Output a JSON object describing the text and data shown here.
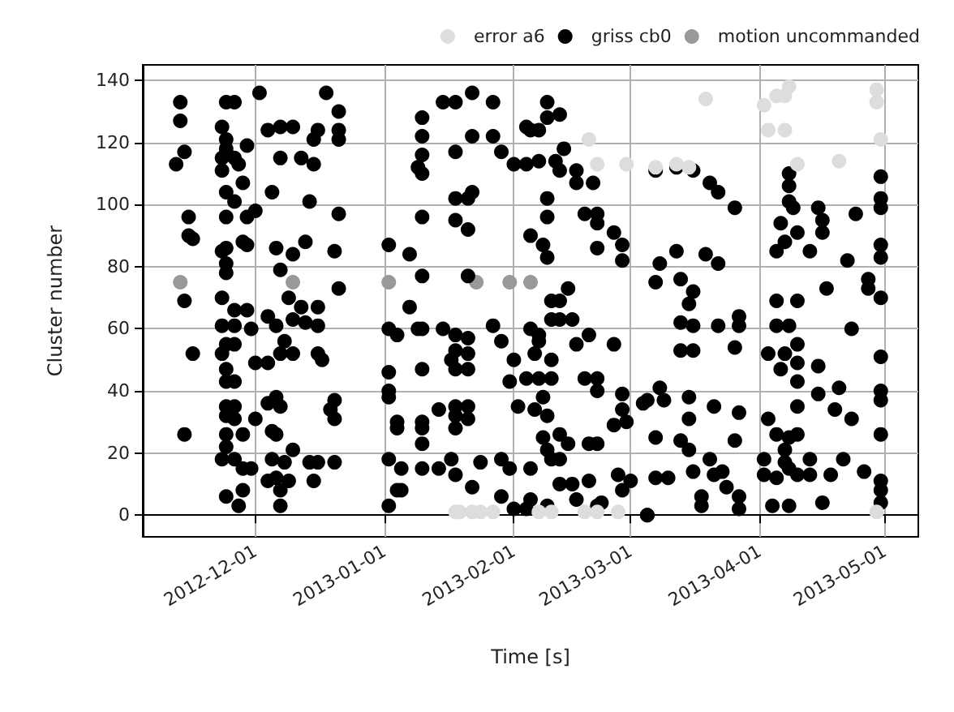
{
  "chart_data": {
    "type": "scatter",
    "xlabel": "Time [s]",
    "ylabel": "Cluster number",
    "xlim": [
      "2012-11-04",
      "2013-05-09"
    ],
    "xticks": [
      "2012-12-01",
      "2013-01-01",
      "2013-02-01",
      "2013-03-01",
      "2013-04-01",
      "2013-05-01"
    ],
    "ylim": [
      -7,
      145
    ],
    "yticks": [
      0,
      20,
      40,
      60,
      80,
      100,
      120,
      140
    ],
    "grid": true,
    "legend": "top right",
    "marker": "circle",
    "series": [
      {
        "name": "error a6",
        "color": "#dddddd",
        "x": [
          "2013-01-18",
          "2013-01-19",
          "2013-01-22",
          "2013-01-24",
          "2013-01-27",
          "2013-02-07",
          "2013-02-10",
          "2013-02-18",
          "2013-02-21",
          "2013-02-26",
          "2013-02-19",
          "2013-02-21",
          "2013-02-28",
          "2013-04-08",
          "2013-04-07",
          "2013-04-05",
          "2013-04-02",
          "2013-03-19",
          "2013-04-03",
          "2013-04-07",
          "2013-04-29",
          "2013-04-29",
          "2013-04-30",
          "2013-04-20",
          "2013-04-10",
          "2013-03-07",
          "2013-03-12",
          "2013-03-15",
          "2013-04-29"
        ],
        "values": [
          1,
          1,
          1,
          1,
          1,
          1,
          1,
          1,
          1,
          1,
          121,
          113,
          113,
          138,
          135,
          135,
          132,
          134,
          124,
          124,
          137,
          133,
          121,
          114,
          113,
          112,
          113,
          112,
          1
        ]
      },
      {
        "name": "griss cb0",
        "color": "#000000",
        "x": [
          "2012-11-24",
          "2012-11-26",
          "2012-12-02",
          "2012-12-18",
          "2012-11-23",
          "2012-12-04",
          "2012-12-07",
          "2012-12-10",
          "2012-12-16",
          "2012-12-15",
          "2012-12-21",
          "2012-12-21",
          "2012-12-21",
          "2012-11-24",
          "2012-11-24",
          "2012-11-29",
          "2012-11-23",
          "2012-11-26",
          "2012-11-23",
          "2012-11-27",
          "2012-12-07",
          "2012-12-12",
          "2012-12-15",
          "2012-11-28",
          "2012-11-24",
          "2012-12-05",
          "2012-11-26",
          "2012-12-14",
          "2012-11-24",
          "2012-11-29",
          "2012-12-01",
          "2012-12-21",
          "2012-11-23",
          "2012-11-24",
          "2012-11-28",
          "2012-11-29",
          "2012-12-06",
          "2012-12-10",
          "2012-12-13",
          "2012-12-20",
          "2012-11-24",
          "2012-11-24",
          "2012-12-07",
          "2012-12-21",
          "2012-11-23",
          "2012-11-26",
          "2012-11-29",
          "2012-12-09",
          "2012-12-12",
          "2012-12-16",
          "2012-12-04",
          "2012-12-06",
          "2012-11-23",
          "2012-11-26",
          "2012-11-30",
          "2012-12-10",
          "2012-12-13",
          "2012-12-16",
          "2012-11-24",
          "2012-11-26",
          "2012-12-08",
          "2012-12-07",
          "2012-12-10",
          "2012-12-16",
          "2012-12-17",
          "2012-11-23",
          "2012-11-24",
          "2012-11-24",
          "2012-11-26",
          "2012-12-01",
          "2012-12-04",
          "2012-11-24",
          "2012-11-26",
          "2012-12-04",
          "2012-12-06",
          "2012-12-07",
          "2012-11-24",
          "2012-11-26",
          "2012-12-01",
          "2012-12-20",
          "2012-12-19",
          "2012-12-20",
          "2012-11-24",
          "2012-11-28",
          "2012-12-05",
          "2012-12-06",
          "2012-11-24",
          "2012-11-23",
          "2012-11-26",
          "2012-12-05",
          "2012-12-08",
          "2012-12-10",
          "2012-12-14",
          "2012-12-16",
          "2012-12-20",
          "2012-11-28",
          "2012-11-30",
          "2012-12-04",
          "2012-12-06",
          "2012-12-09",
          "2012-12-15",
          "2012-11-28",
          "2012-12-07",
          "2012-11-24",
          "2012-11-27",
          "2012-12-07",
          "2012-11-13",
          "2012-11-13",
          "2012-11-14",
          "2012-11-12",
          "2012-11-15",
          "2012-11-15",
          "2012-11-16",
          "2012-11-14",
          "2012-11-16",
          "2012-11-14",
          "2013-01-22",
          "2013-01-15",
          "2013-01-18",
          "2013-01-27",
          "2013-01-10",
          "2013-01-10",
          "2013-01-10",
          "2013-01-09",
          "2013-01-10",
          "2013-01-18",
          "2013-01-22",
          "2013-01-27",
          "2013-01-29",
          "2013-02-01",
          "2013-02-09",
          "2013-02-12",
          "2013-02-09",
          "2013-02-04",
          "2013-02-05",
          "2013-02-07",
          "2013-02-13",
          "2013-02-11",
          "2013-02-07",
          "2013-02-04",
          "2013-02-12",
          "2013-02-16",
          "2013-02-16",
          "2013-02-20",
          "2013-02-09",
          "2013-01-18",
          "2013-01-21",
          "2013-01-22",
          "2013-01-10",
          "2013-02-09",
          "2013-02-18",
          "2013-02-21",
          "2013-02-21",
          "2013-02-25",
          "2013-01-18",
          "2013-01-21",
          "2013-02-05",
          "2013-02-08",
          "2013-02-09",
          "2013-02-21",
          "2013-02-27",
          "2013-02-27",
          "2013-01-02",
          "2013-01-07",
          "2013-01-10",
          "2013-01-21",
          "2013-02-14",
          "2013-02-10",
          "2013-02-12",
          "2013-01-07",
          "2013-01-02",
          "2013-01-04",
          "2013-01-09",
          "2013-01-10",
          "2013-01-15",
          "2013-01-18",
          "2013-01-21",
          "2013-01-27",
          "2013-01-29",
          "2013-02-05",
          "2013-02-07",
          "2013-02-10",
          "2013-02-12",
          "2013-02-15",
          "2013-02-07",
          "2013-02-16",
          "2013-02-19",
          "2013-02-25",
          "2013-01-18",
          "2013-01-17",
          "2013-01-21",
          "2013-01-18",
          "2013-01-21",
          "2013-02-06",
          "2013-02-10",
          "2013-02-01",
          "2013-01-31",
          "2013-02-04",
          "2013-02-07",
          "2013-02-10",
          "2013-02-18",
          "2013-02-21",
          "2013-01-02",
          "2013-01-10",
          "2013-01-02",
          "2013-01-02",
          "2013-02-21",
          "2013-02-27",
          "2013-03-04",
          "2013-02-08",
          "2013-02-02",
          "2013-02-06",
          "2013-02-09",
          "2013-01-14",
          "2013-01-18",
          "2013-01-21",
          "2013-01-18",
          "2013-01-21",
          "2013-01-04",
          "2013-01-04",
          "2013-01-10",
          "2013-01-10",
          "2013-01-18",
          "2013-02-27",
          "2013-02-25",
          "2013-02-28",
          "2013-01-10",
          "2013-02-08",
          "2013-02-09",
          "2013-02-12",
          "2013-02-14",
          "2013-02-19",
          "2013-02-21",
          "2013-01-02",
          "2013-01-17",
          "2013-01-24",
          "2013-01-29",
          "2013-02-10",
          "2013-02-12",
          "2013-01-05",
          "2013-01-10",
          "2013-01-14",
          "2013-01-31",
          "2013-02-05",
          "2013-01-04",
          "2013-01-05",
          "2013-01-18",
          "2013-01-22",
          "2013-01-29",
          "2013-02-12",
          "2013-02-15",
          "2013-02-19",
          "2013-02-26",
          "2013-02-27",
          "2013-01-02",
          "2013-02-01",
          "2013-02-04",
          "2013-02-05",
          "2013-02-09",
          "2013-02-16",
          "2013-02-21",
          "2013-02-22",
          "2013-03-05",
          "2013-03-07",
          "2013-03-12",
          "2013-03-16",
          "2013-03-20",
          "2013-03-22",
          "2013-03-26",
          "2013-04-08",
          "2013-04-08",
          "2013-04-08",
          "2013-04-09",
          "2013-04-15",
          "2013-04-16",
          "2013-04-16",
          "2013-04-24",
          "2013-04-30",
          "2013-04-30",
          "2013-04-30",
          "2013-04-06",
          "2013-04-10",
          "2013-04-07",
          "2013-04-05",
          "2013-04-13",
          "2013-04-30",
          "2013-04-30",
          "2013-04-22",
          "2013-03-12",
          "2013-03-08",
          "2013-03-07",
          "2013-03-19",
          "2013-03-22",
          "2013-03-13",
          "2013-03-16",
          "2013-03-15",
          "2013-04-27",
          "2013-04-27",
          "2013-04-30",
          "2013-04-17",
          "2013-04-05",
          "2013-04-10",
          "2013-03-13",
          "2013-03-16",
          "2013-03-22",
          "2013-03-27",
          "2013-03-27",
          "2013-04-05",
          "2013-04-08",
          "2013-04-23",
          "2013-03-13",
          "2013-03-16",
          "2013-03-26",
          "2013-04-03",
          "2013-04-07",
          "2013-04-10",
          "2013-04-10",
          "2013-04-06",
          "2013-04-15",
          "2013-04-30",
          "2013-04-10",
          "2013-04-15",
          "2013-04-20",
          "2013-04-30",
          "2013-04-30",
          "2013-03-08",
          "2013-03-05",
          "2013-03-09",
          "2013-03-15",
          "2013-03-21",
          "2013-03-15",
          "2013-03-27",
          "2013-04-03",
          "2013-04-10",
          "2013-04-19",
          "2013-04-23",
          "2013-03-07",
          "2013-03-13",
          "2013-03-15",
          "2013-03-26",
          "2013-04-05",
          "2013-04-08",
          "2013-04-10",
          "2013-04-07",
          "2013-04-13",
          "2013-04-21",
          "2013-04-30",
          "2013-04-02",
          "2013-04-07",
          "2013-04-08",
          "2013-03-20",
          "2013-03-07",
          "2013-03-10",
          "2013-03-16",
          "2013-03-21",
          "2013-03-23",
          "2013-03-24",
          "2013-03-18",
          "2013-03-27",
          "2013-04-02",
          "2013-04-05",
          "2013-04-10",
          "2013-04-13",
          "2013-04-18",
          "2013-04-26",
          "2013-04-30",
          "2013-04-30",
          "2013-04-30",
          "2013-03-18",
          "2013-03-27",
          "2013-04-04",
          "2013-04-08",
          "2013-04-16",
          "2013-03-05",
          "2013-03-01"
        ],
        "values": [
          133,
          133,
          136,
          136,
          125,
          124,
          125,
          125,
          124,
          121,
          130,
          124,
          121,
          121,
          118,
          119,
          115,
          115,
          111,
          113,
          115,
          115,
          113,
          107,
          104,
          104,
          101,
          101,
          96,
          96,
          98,
          97,
          85,
          86,
          88,
          87,
          86,
          84,
          88,
          85,
          81,
          78,
          79,
          73,
          70,
          66,
          66,
          70,
          67,
          67,
          64,
          61,
          61,
          61,
          60,
          63,
          62,
          61,
          55,
          55,
          56,
          52,
          52,
          52,
          50,
          52,
          47,
          43,
          43,
          49,
          49,
          35,
          35,
          36,
          38,
          35,
          32,
          31,
          31,
          37,
          34,
          31,
          26,
          26,
          27,
          26,
          22,
          18,
          18,
          18,
          17,
          21,
          17,
          17,
          17,
          15,
          15,
          11,
          12,
          11,
          11,
          8,
          8,
          6,
          3,
          3,
          133,
          127,
          117,
          113,
          96,
          90,
          89,
          69,
          52,
          26,
          136,
          133,
          133,
          133,
          128,
          122,
          116,
          112,
          110,
          117,
          122,
          122,
          117,
          113,
          133,
          129,
          128,
          125,
          124,
          124,
          118,
          114,
          114,
          113,
          111,
          111,
          107,
          107,
          102,
          102,
          102,
          104,
          96,
          96,
          97,
          97,
          94,
          91,
          95,
          92,
          90,
          87,
          83,
          86,
          87,
          82,
          87,
          84,
          77,
          77,
          73,
          69,
          69,
          67,
          60,
          58,
          60,
          60,
          60,
          58,
          57,
          61,
          56,
          60,
          58,
          63,
          63,
          63,
          56,
          55,
          58,
          55,
          53,
          50,
          52,
          47,
          47,
          52,
          50,
          50,
          43,
          44,
          44,
          44,
          44,
          44,
          46,
          47,
          40,
          38,
          40,
          39,
          36,
          38,
          35,
          34,
          32,
          34,
          35,
          35,
          32,
          31,
          30,
          28,
          30,
          28,
          28,
          34,
          29,
          30,
          23,
          25,
          21,
          26,
          23,
          23,
          23,
          18,
          18,
          17,
          18,
          18,
          18,
          15,
          15,
          15,
          15,
          15,
          8,
          8,
          13,
          9,
          6,
          10,
          10,
          11,
          13,
          8,
          3,
          2,
          2,
          5,
          3,
          5,
          3,
          4,
          0,
          111,
          112,
          111,
          107,
          104,
          99,
          110,
          106,
          101,
          99,
          99,
          95,
          91,
          97,
          109,
          102,
          99,
          94,
          91,
          88,
          85,
          85,
          87,
          83,
          82,
          85,
          81,
          75,
          84,
          81,
          76,
          72,
          68,
          76,
          73,
          70,
          73,
          69,
          69,
          62,
          61,
          61,
          64,
          61,
          61,
          61,
          60,
          53,
          53,
          54,
          52,
          52,
          55,
          49,
          47,
          48,
          51,
          43,
          39,
          41,
          40,
          37,
          41,
          37,
          37,
          38,
          35,
          31,
          33,
          31,
          35,
          34,
          31,
          25,
          24,
          21,
          24,
          26,
          25,
          26,
          21,
          18,
          18,
          26,
          18,
          17,
          15,
          18,
          12,
          12,
          14,
          13,
          14,
          9,
          6,
          6,
          13,
          12,
          13,
          13,
          13,
          14,
          11,
          8,
          4,
          3,
          2,
          3,
          3,
          4,
          0,
          11
        ]
      },
      {
        "name": "motion uncommanded",
        "color": "#999999",
        "x": [
          "2012-11-13",
          "2012-12-10",
          "2013-01-02",
          "2013-01-23",
          "2013-01-31",
          "2013-02-05"
        ],
        "values": [
          75,
          75,
          75,
          75,
          75,
          75
        ]
      }
    ]
  }
}
